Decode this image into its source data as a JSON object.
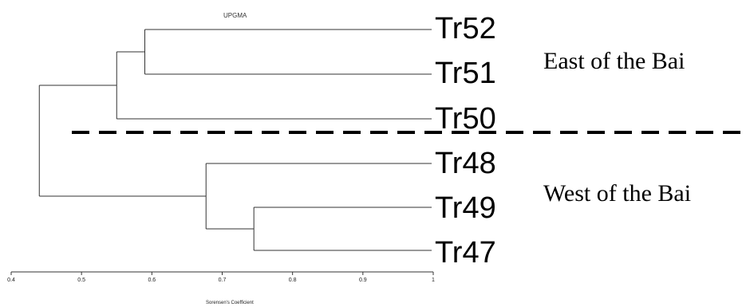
{
  "title": "UPGMA",
  "axis": {
    "title": "Sorensen's Coefficient",
    "min": 0.4,
    "max": 1,
    "ticks": [
      "0.4",
      "0.5",
      "0.6",
      "0.7",
      "0.8",
      "0.9",
      "1"
    ]
  },
  "leaves": [
    "Tr52",
    "Tr51",
    "Tr50",
    "Tr48",
    "Tr49",
    "Tr47"
  ],
  "merges": [
    {
      "children": [
        "Tr52",
        "Tr51"
      ],
      "similarity": 0.59
    },
    {
      "children": [
        "Tr49",
        "Tr47"
      ],
      "similarity": 0.745
    },
    {
      "children": [
        "Tr48",
        "Tr49+Tr47"
      ],
      "similarity": 0.677
    },
    {
      "children": [
        "Tr52+Tr51",
        "Tr50"
      ],
      "similarity": 0.55
    },
    {
      "children": [
        "East",
        "West"
      ],
      "similarity": 0.44
    }
  ],
  "groups": {
    "east": "East of the Bai",
    "west": "West of the Bai"
  }
}
